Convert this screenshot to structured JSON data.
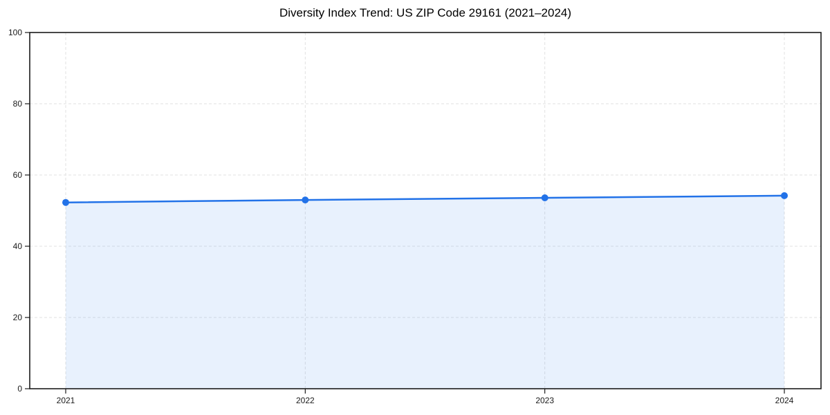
{
  "chart_data": {
    "type": "area",
    "title": "Diversity Index Trend: US ZIP Code 29161 (2021–2024)",
    "x": [
      2021,
      2022,
      2023,
      2024
    ],
    "xticks": [
      "2021",
      "2022",
      "2023",
      "2024"
    ],
    "yticks": [
      0,
      20,
      40,
      60,
      80,
      100
    ],
    "ylim": [
      0,
      100
    ],
    "series": [
      {
        "name": "Diversity Index",
        "values": [
          52.3,
          53.0,
          53.6,
          54.2
        ]
      }
    ],
    "xlabel": "",
    "ylabel": "",
    "grid": true,
    "legend_visible": false,
    "line_color": "#2272e8",
    "area_fill": "#2272e8",
    "area_opacity": 0.1,
    "marker": "circle",
    "marker_radius": 5,
    "axis_color": "#1a1a1a",
    "grid_color": "#e2e2e2",
    "background": "#ffffff"
  }
}
